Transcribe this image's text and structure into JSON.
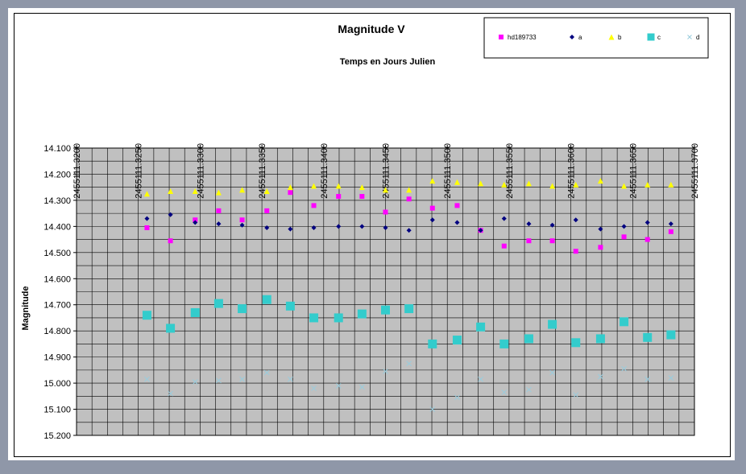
{
  "chart_data": {
    "type": "scatter",
    "title": "Magnitude V",
    "xlabel": "Temps en Jours Julien",
    "ylabel": "Magnitude",
    "xlim": [
      2455111.32,
      2455111.37
    ],
    "ylim": [
      14.1,
      15.2
    ],
    "y_reversed": true,
    "grid": true,
    "legend_position": "top-right",
    "x_ticks": [
      "2455111.3200",
      "2455111.3250",
      "2455111.3300",
      "2455111.3350",
      "2455111.3400",
      "2455111.3450",
      "2455111.3500",
      "2455111.3550",
      "2455111.3600",
      "2455111.3650",
      "2455111.3700"
    ],
    "y_ticks": [
      "14.100",
      "14.200",
      "14.300",
      "14.400",
      "14.500",
      "14.600",
      "14.700",
      "14.800",
      "14.900",
      "15.000",
      "15.100",
      "15.200"
    ],
    "x": [
      2455111.3257,
      2455111.3276,
      2455111.3296,
      2455111.3315,
      2455111.3334,
      2455111.3354,
      2455111.3373,
      2455111.3392,
      2455111.3412,
      2455111.3431,
      2455111.345,
      2455111.3469,
      2455111.3488,
      2455111.3508,
      2455111.3527,
      2455111.3546,
      2455111.3566,
      2455111.3585,
      2455111.3604,
      2455111.3624,
      2455111.3643,
      2455111.3662,
      2455111.3681
    ],
    "series": [
      {
        "name": "hd189733",
        "marker": "square",
        "color": "#ff00ff",
        "size": 6,
        "values": [
          14.405,
          14.455,
          14.375,
          14.34,
          14.375,
          14.34,
          14.27,
          14.32,
          14.285,
          14.285,
          14.345,
          14.295,
          14.33,
          14.32,
          14.415,
          14.475,
          14.455,
          14.455,
          14.495,
          14.48,
          14.44,
          14.45,
          14.42
        ]
      },
      {
        "name": "a",
        "marker": "diamond",
        "color": "#000080",
        "size": 6,
        "values": [
          14.37,
          14.355,
          14.385,
          14.39,
          14.395,
          14.405,
          14.41,
          14.405,
          14.4,
          14.4,
          14.405,
          14.415,
          14.375,
          14.385,
          14.415,
          14.37,
          14.39,
          14.395,
          14.375,
          14.41,
          14.4,
          14.385,
          14.39
        ]
      },
      {
        "name": "b",
        "marker": "triangle",
        "color": "#ffff00",
        "size": 7,
        "values": [
          14.275,
          14.265,
          14.265,
          14.27,
          14.26,
          14.265,
          14.25,
          14.245,
          14.245,
          14.25,
          14.26,
          14.26,
          14.225,
          14.23,
          14.235,
          14.24,
          14.235,
          14.245,
          14.24,
          14.225,
          14.245,
          14.24,
          14.24
        ]
      },
      {
        "name": "c",
        "marker": "square",
        "color": "#33cccc",
        "size": 11,
        "values": [
          14.74,
          14.79,
          14.73,
          14.695,
          14.715,
          14.68,
          14.705,
          14.75,
          14.75,
          14.735,
          14.72,
          14.715,
          14.85,
          14.835,
          14.785,
          14.85,
          14.83,
          14.775,
          14.845,
          14.83,
          14.765,
          14.825,
          14.815
        ]
      },
      {
        "name": "d",
        "marker": "x",
        "color": "#99ccdd",
        "size": 3,
        "values": [
          14.985,
          15.04,
          14.995,
          14.99,
          14.985,
          14.96,
          14.985,
          15.02,
          15.01,
          15.015,
          14.955,
          14.925,
          15.1,
          15.055,
          14.985,
          15.035,
          15.025,
          14.96,
          15.045,
          14.975,
          14.945,
          14.985,
          14.98
        ]
      }
    ]
  }
}
